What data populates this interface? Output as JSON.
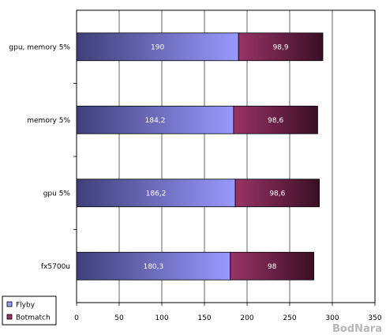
{
  "chart_data": {
    "type": "bar",
    "orientation": "horizontal",
    "stacked": true,
    "categories": [
      "gpu, memory 5%",
      "memory 5%",
      "gpu 5%",
      "fx5700u"
    ],
    "series": [
      {
        "name": "Flyby",
        "values": [
          190,
          184.2,
          186.2,
          180.3
        ],
        "labels": [
          "190",
          "184,2",
          "186,2",
          "180,3"
        ],
        "color_start": "#3f3f78",
        "color_end": "#9999ff"
      },
      {
        "name": "Botmatch",
        "values": [
          98.9,
          98.6,
          98.6,
          98
        ],
        "labels": [
          "98,9",
          "98,6",
          "98,6",
          "98"
        ],
        "color_start": "#993366",
        "color_end": "#3a0f24"
      }
    ],
    "xlim": [
      0,
      350
    ],
    "xticks": [
      "0",
      "50",
      "100",
      "150",
      "200",
      "250",
      "300",
      "350"
    ],
    "grid": true,
    "legend_position": "bottom-left"
  },
  "watermark": "BodNara"
}
